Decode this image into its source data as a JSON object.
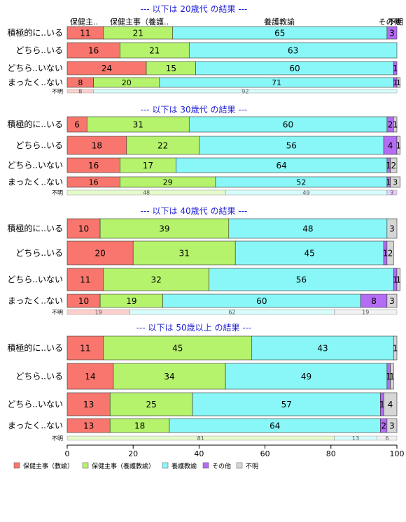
{
  "chart_data": {
    "type": "bar",
    "orientation": "horizontal-stacked-percent",
    "xlim": [
      0,
      100
    ],
    "xticks": [
      0,
      20,
      40,
      60,
      80,
      100
    ],
    "grid": false,
    "legend_position": "bottom-left",
    "series_colors": [
      "#f8766d",
      "#b5f36c",
      "#89f7f7",
      "#b36cf3",
      "#d6d6d6"
    ],
    "legend": [
      "保健主事（教諭）",
      "保健主事（養護教諭）",
      "養護教諭",
      "その他",
      "不明"
    ],
    "top_labels": [
      "保健主..",
      "保健主事（養護..",
      "養護教諭",
      "その他",
      "不明"
    ],
    "panels": [
      {
        "title": "--- 以下は 20歳代 の結果 ---",
        "categories": [
          "積極的に..いる",
          "どちら..いる",
          "どちら..いない",
          "まったく..ない"
        ],
        "rows": [
          [
            11,
            21,
            65,
            3,
            0
          ],
          [
            16,
            21,
            63,
            0,
            0
          ],
          [
            24,
            15,
            60,
            1,
            0
          ],
          [
            8,
            20,
            71,
            1,
            1
          ]
        ],
        "unknown_label": "不明",
        "unknown": [
          8,
          0,
          92,
          0,
          0
        ]
      },
      {
        "title": "--- 以下は 30歳代 の結果 ---",
        "categories": [
          "積極的に..いる",
          "どちら..いる",
          "どちら..いない",
          "まったく..ない"
        ],
        "rows": [
          [
            6,
            31,
            60,
            2,
            1
          ],
          [
            18,
            22,
            56,
            4,
            1
          ],
          [
            16,
            17,
            64,
            1,
            2
          ],
          [
            16,
            29,
            52,
            1,
            3
          ]
        ],
        "unknown_label": "不明",
        "unknown": [
          0,
          48,
          49,
          3,
          0
        ]
      },
      {
        "title": "--- 以下は 40歳代 の結果 ---",
        "categories": [
          "積極的に..いる",
          "どちら..いる",
          "どちら..いない",
          "まったく..ない"
        ],
        "rows": [
          [
            10,
            39,
            48,
            0,
            3
          ],
          [
            20,
            31,
            45,
            1,
            2
          ],
          [
            11,
            32,
            56,
            1,
            1
          ],
          [
            10,
            19,
            60,
            8,
            3
          ]
        ],
        "unknown_label": "不明",
        "unknown": [
          19,
          0,
          62,
          0,
          19
        ]
      },
      {
        "title": "--- 以下は 50歳以上 の結果 ---",
        "categories": [
          "積極的に..いる",
          "どちら..いる",
          "どちら..いない",
          "まったく..ない"
        ],
        "rows": [
          [
            11,
            45,
            43,
            0,
            1
          ],
          [
            14,
            34,
            49,
            1,
            1
          ],
          [
            13,
            25,
            57,
            1,
            4
          ],
          [
            13,
            18,
            64,
            2,
            3
          ]
        ],
        "unknown_label": "不明",
        "unknown": [
          0,
          81,
          13,
          0,
          6
        ]
      }
    ]
  }
}
